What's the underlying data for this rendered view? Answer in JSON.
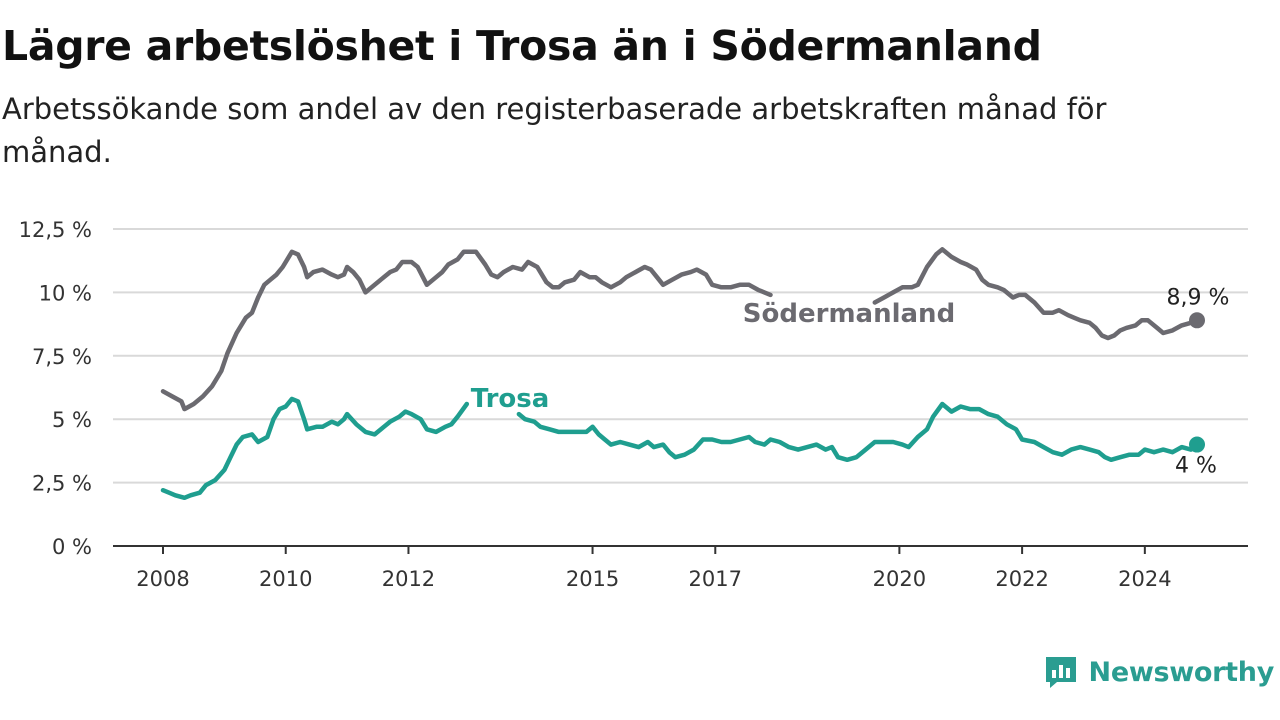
{
  "header": {
    "title": "Lägre arbetslöshet i Trosa än i Södermanland",
    "subtitle": "Arbetssökande som andel av den registerbaserade arbetskraften månad för månad."
  },
  "brand": {
    "name": "Newsworthy",
    "icon": "newsworthy-logo-icon",
    "color": "#2a9d91"
  },
  "colors": {
    "sodermanland": "#6b6a70",
    "trosa": "#1f9e8f",
    "grid": "#d9d9d9",
    "axis": "#333333"
  },
  "chart_data": {
    "type": "line",
    "title": "Lägre arbetslöshet i Trosa än i Södermanland",
    "subtitle": "Arbetssökande som andel av den registerbaserade arbetskraften månad för månad.",
    "ylim": [
      0,
      12.5
    ],
    "yticks": [
      0,
      2.5,
      5,
      7.5,
      10,
      12.5
    ],
    "ytick_labels": [
      "0 %",
      "2,5 %",
      "5 %",
      "7,5 %",
      "10 %",
      "12,5 %"
    ],
    "xlim": [
      2008,
      2025.2
    ],
    "xticks": [
      2008,
      2010,
      2012,
      2015,
      2017,
      2020,
      2022,
      2024
    ],
    "xtick_labels": [
      "2008",
      "2010",
      "2012",
      "2015",
      "2017",
      "2020",
      "2022",
      "2024"
    ],
    "grid": true,
    "series": [
      {
        "name": "Södermanland",
        "color": "#6b6a70",
        "end_label": "8,9 %",
        "segments": [
          [
            [
              2008.0,
              6.1
            ],
            [
              2008.15,
              5.9
            ],
            [
              2008.3,
              5.7
            ],
            [
              2008.35,
              5.4
            ],
            [
              2008.5,
              5.6
            ],
            [
              2008.65,
              5.9
            ],
            [
              2008.8,
              6.3
            ],
            [
              2008.95,
              6.9
            ],
            [
              2009.05,
              7.6
            ],
            [
              2009.2,
              8.4
            ],
            [
              2009.35,
              9.0
            ],
            [
              2009.45,
              9.2
            ],
            [
              2009.55,
              9.8
            ],
            [
              2009.65,
              10.3
            ],
            [
              2009.75,
              10.5
            ],
            [
              2009.85,
              10.7
            ],
            [
              2009.95,
              11.0
            ],
            [
              2010.05,
              11.4
            ],
            [
              2010.1,
              11.6
            ],
            [
              2010.2,
              11.5
            ],
            [
              2010.3,
              11.0
            ],
            [
              2010.35,
              10.6
            ],
            [
              2010.45,
              10.8
            ],
            [
              2010.6,
              10.9
            ],
            [
              2010.75,
              10.7
            ],
            [
              2010.85,
              10.6
            ],
            [
              2010.95,
              10.7
            ],
            [
              2011.0,
              11.0
            ],
            [
              2011.1,
              10.8
            ],
            [
              2011.2,
              10.5
            ],
            [
              2011.3,
              10.0
            ],
            [
              2011.4,
              10.2
            ],
            [
              2011.55,
              10.5
            ],
            [
              2011.7,
              10.8
            ],
            [
              2011.8,
              10.9
            ],
            [
              2011.9,
              11.2
            ],
            [
              2012.05,
              11.2
            ],
            [
              2012.15,
              11.0
            ],
            [
              2012.3,
              10.3
            ],
            [
              2012.45,
              10.6
            ],
            [
              2012.55,
              10.8
            ],
            [
              2012.65,
              11.1
            ],
            [
              2012.8,
              11.3
            ],
            [
              2012.9,
              11.6
            ],
            [
              2013.1,
              11.6
            ],
            [
              2013.25,
              11.1
            ],
            [
              2013.35,
              10.7
            ],
            [
              2013.45,
              10.6
            ],
            [
              2013.55,
              10.8
            ],
            [
              2013.7,
              11.0
            ],
            [
              2013.85,
              10.9
            ],
            [
              2013.95,
              11.2
            ],
            [
              2014.1,
              11.0
            ],
            [
              2014.25,
              10.4
            ],
            [
              2014.35,
              10.2
            ],
            [
              2014.45,
              10.2
            ],
            [
              2014.55,
              10.4
            ],
            [
              2014.7,
              10.5
            ],
            [
              2014.8,
              10.8
            ],
            [
              2014.95,
              10.6
            ],
            [
              2015.05,
              10.6
            ],
            [
              2015.15,
              10.4
            ],
            [
              2015.3,
              10.2
            ],
            [
              2015.45,
              10.4
            ],
            [
              2015.55,
              10.6
            ],
            [
              2015.7,
              10.8
            ],
            [
              2015.85,
              11.0
            ],
            [
              2015.95,
              10.9
            ],
            [
              2016.05,
              10.6
            ],
            [
              2016.15,
              10.3
            ],
            [
              2016.3,
              10.5
            ],
            [
              2016.45,
              10.7
            ],
            [
              2016.6,
              10.8
            ],
            [
              2016.7,
              10.9
            ],
            [
              2016.85,
              10.7
            ],
            [
              2016.95,
              10.3
            ],
            [
              2017.1,
              10.2
            ],
            [
              2017.25,
              10.2
            ],
            [
              2017.4,
              10.3
            ],
            [
              2017.55,
              10.3
            ],
            [
              2017.7,
              10.1
            ],
            [
              2017.8,
              10.0
            ],
            [
              2017.9,
              9.9
            ]
          ],
          [
            [
              2019.6,
              9.6
            ],
            [
              2019.75,
              9.8
            ],
            [
              2019.9,
              10.0
            ],
            [
              2020.05,
              10.2
            ],
            [
              2020.2,
              10.2
            ],
            [
              2020.3,
              10.3
            ],
            [
              2020.45,
              11.0
            ],
            [
              2020.6,
              11.5
            ],
            [
              2020.7,
              11.7
            ],
            [
              2020.85,
              11.4
            ],
            [
              2021.0,
              11.2
            ],
            [
              2021.1,
              11.1
            ],
            [
              2021.25,
              10.9
            ],
            [
              2021.35,
              10.5
            ],
            [
              2021.45,
              10.3
            ],
            [
              2021.6,
              10.2
            ],
            [
              2021.7,
              10.1
            ],
            [
              2021.85,
              9.8
            ],
            [
              2021.95,
              9.9
            ],
            [
              2022.05,
              9.9
            ],
            [
              2022.2,
              9.6
            ],
            [
              2022.35,
              9.2
            ],
            [
              2022.5,
              9.2
            ],
            [
              2022.6,
              9.3
            ],
            [
              2022.75,
              9.1
            ],
            [
              2022.85,
              9.0
            ],
            [
              2022.95,
              8.9
            ],
            [
              2023.1,
              8.8
            ],
            [
              2023.2,
              8.6
            ],
            [
              2023.3,
              8.3
            ],
            [
              2023.4,
              8.2
            ],
            [
              2023.5,
              8.3
            ],
            [
              2023.6,
              8.5
            ],
            [
              2023.7,
              8.6
            ],
            [
              2023.85,
              8.7
            ],
            [
              2023.95,
              8.9
            ],
            [
              2024.05,
              8.9
            ],
            [
              2024.2,
              8.6
            ],
            [
              2024.3,
              8.4
            ],
            [
              2024.45,
              8.5
            ],
            [
              2024.6,
              8.7
            ],
            [
              2024.75,
              8.8
            ],
            [
              2024.85,
              8.9
            ]
          ]
        ]
      },
      {
        "name": "Trosa",
        "color": "#1f9e8f",
        "end_label": "4 %",
        "segments": [
          [
            [
              2008.0,
              2.2
            ],
            [
              2008.1,
              2.1
            ],
            [
              2008.2,
              2.0
            ],
            [
              2008.35,
              1.9
            ],
            [
              2008.45,
              2.0
            ],
            [
              2008.6,
              2.1
            ],
            [
              2008.7,
              2.4
            ],
            [
              2008.85,
              2.6
            ],
            [
              2009.0,
              3.0
            ],
            [
              2009.1,
              3.5
            ],
            [
              2009.2,
              4.0
            ],
            [
              2009.3,
              4.3
            ],
            [
              2009.45,
              4.4
            ],
            [
              2009.55,
              4.1
            ],
            [
              2009.7,
              4.3
            ],
            [
              2009.8,
              5.0
            ],
            [
              2009.9,
              5.4
            ],
            [
              2010.0,
              5.5
            ],
            [
              2010.1,
              5.8
            ],
            [
              2010.2,
              5.7
            ],
            [
              2010.3,
              5.0
            ],
            [
              2010.35,
              4.6
            ],
            [
              2010.5,
              4.7
            ],
            [
              2010.6,
              4.7
            ],
            [
              2010.75,
              4.9
            ],
            [
              2010.85,
              4.8
            ],
            [
              2010.95,
              5.0
            ],
            [
              2011.0,
              5.2
            ],
            [
              2011.15,
              4.8
            ],
            [
              2011.3,
              4.5
            ],
            [
              2011.45,
              4.4
            ],
            [
              2011.6,
              4.7
            ],
            [
              2011.7,
              4.9
            ],
            [
              2011.85,
              5.1
            ],
            [
              2011.95,
              5.3
            ],
            [
              2012.05,
              5.2
            ],
            [
              2012.2,
              5.0
            ],
            [
              2012.3,
              4.6
            ],
            [
              2012.45,
              4.5
            ],
            [
              2012.6,
              4.7
            ],
            [
              2012.7,
              4.8
            ],
            [
              2012.8,
              5.1
            ],
            [
              2012.95,
              5.6
            ]
          ],
          [
            [
              2013.8,
              5.2
            ],
            [
              2013.9,
              5.0
            ],
            [
              2014.05,
              4.9
            ],
            [
              2014.15,
              4.7
            ],
            [
              2014.3,
              4.6
            ],
            [
              2014.45,
              4.5
            ],
            [
              2014.6,
              4.5
            ],
            [
              2014.75,
              4.5
            ],
            [
              2014.9,
              4.5
            ],
            [
              2015.0,
              4.7
            ],
            [
              2015.1,
              4.4
            ],
            [
              2015.2,
              4.2
            ],
            [
              2015.3,
              4.0
            ],
            [
              2015.45,
              4.1
            ],
            [
              2015.6,
              4.0
            ],
            [
              2015.75,
              3.9
            ],
            [
              2015.9,
              4.1
            ],
            [
              2016.0,
              3.9
            ],
            [
              2016.15,
              4.0
            ],
            [
              2016.25,
              3.7
            ],
            [
              2016.35,
              3.5
            ],
            [
              2016.5,
              3.6
            ],
            [
              2016.65,
              3.8
            ],
            [
              2016.8,
              4.2
            ],
            [
              2016.95,
              4.2
            ],
            [
              2017.1,
              4.1
            ],
            [
              2017.25,
              4.1
            ],
            [
              2017.4,
              4.2
            ],
            [
              2017.55,
              4.3
            ],
            [
              2017.65,
              4.1
            ],
            [
              2017.8,
              4.0
            ],
            [
              2017.9,
              4.2
            ],
            [
              2018.05,
              4.1
            ],
            [
              2018.2,
              3.9
            ],
            [
              2018.35,
              3.8
            ],
            [
              2018.5,
              3.9
            ],
            [
              2018.65,
              4.0
            ],
            [
              2018.8,
              3.8
            ],
            [
              2018.9,
              3.9
            ],
            [
              2019.0,
              3.5
            ],
            [
              2019.15,
              3.4
            ],
            [
              2019.3,
              3.5
            ],
            [
              2019.45,
              3.8
            ],
            [
              2019.6,
              4.1
            ],
            [
              2019.75,
              4.1
            ],
            [
              2019.9,
              4.1
            ],
            [
              2020.05,
              4.0
            ],
            [
              2020.15,
              3.9
            ],
            [
              2020.3,
              4.3
            ],
            [
              2020.45,
              4.6
            ],
            [
              2020.55,
              5.1
            ],
            [
              2020.7,
              5.6
            ],
            [
              2020.85,
              5.3
            ],
            [
              2021.0,
              5.5
            ],
            [
              2021.15,
              5.4
            ],
            [
              2021.3,
              5.4
            ],
            [
              2021.45,
              5.2
            ],
            [
              2021.6,
              5.1
            ],
            [
              2021.75,
              4.8
            ],
            [
              2021.9,
              4.6
            ],
            [
              2022.0,
              4.2
            ],
            [
              2022.2,
              4.1
            ],
            [
              2022.35,
              3.9
            ],
            [
              2022.5,
              3.7
            ],
            [
              2022.65,
              3.6
            ],
            [
              2022.8,
              3.8
            ],
            [
              2022.95,
              3.9
            ],
            [
              2023.1,
              3.8
            ],
            [
              2023.25,
              3.7
            ],
            [
              2023.35,
              3.5
            ],
            [
              2023.45,
              3.4
            ],
            [
              2023.6,
              3.5
            ],
            [
              2023.75,
              3.6
            ],
            [
              2023.9,
              3.6
            ],
            [
              2024.0,
              3.8
            ],
            [
              2024.15,
              3.7
            ],
            [
              2024.3,
              3.8
            ],
            [
              2024.45,
              3.7
            ],
            [
              2024.6,
              3.9
            ],
            [
              2024.75,
              3.8
            ],
            [
              2024.85,
              4.0
            ]
          ]
        ]
      }
    ]
  }
}
